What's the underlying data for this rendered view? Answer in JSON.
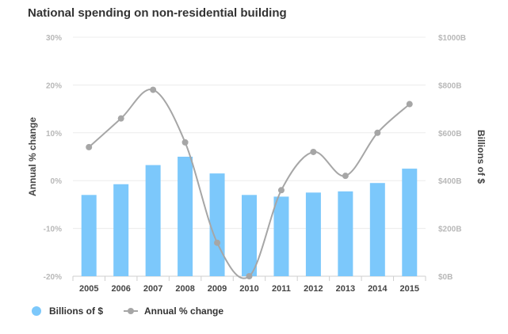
{
  "chart_data": {
    "type": "bar",
    "title": "National spending on non-residential building",
    "categories": [
      "2005",
      "2006",
      "2007",
      "2008",
      "2009",
      "2010",
      "2011",
      "2012",
      "2013",
      "2014",
      "2015"
    ],
    "series": [
      {
        "name": "Billions of $",
        "type": "bar",
        "axis": "right",
        "color": "#7cc8fb",
        "values": [
          340,
          385,
          465,
          500,
          430,
          340,
          333,
          350,
          355,
          390,
          450
        ]
      },
      {
        "name": "Annual % change",
        "type": "line",
        "axis": "left",
        "color": "#a6a6a6",
        "values": [
          7,
          13,
          19,
          8,
          -13,
          -20,
          -2,
          6,
          1,
          10,
          16
        ]
      }
    ],
    "y_left": {
      "label": "Annual % change",
      "ylim": [
        -20,
        30
      ],
      "ticks": [
        -20,
        -10,
        0,
        10,
        20,
        30
      ],
      "tick_labels": [
        "-20%",
        "-10%",
        "0%",
        "10%",
        "20%",
        "30%"
      ]
    },
    "y_right": {
      "label": "Billions of $",
      "ylim": [
        0,
        1000
      ],
      "ticks": [
        0,
        200,
        400,
        600,
        800,
        1000
      ],
      "tick_labels": [
        "$0B",
        "$200B",
        "$400B",
        "$600B",
        "$800B",
        "$1000B"
      ]
    },
    "grid": true,
    "legend_position": "bottom-left"
  }
}
